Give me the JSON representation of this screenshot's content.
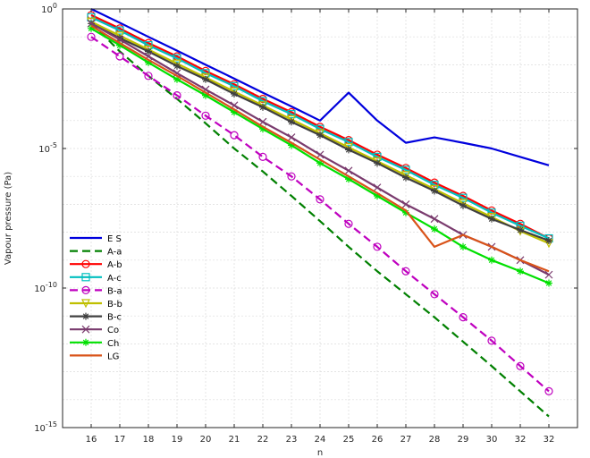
{
  "chart_data": {
    "type": "line",
    "xlabel": "n",
    "ylabel": "Vapour pressure (Pa)",
    "y_scale": "log",
    "ylim": [
      1e-15,
      1
    ],
    "categories": [
      "16",
      "17",
      "18",
      "19",
      "20",
      "21",
      "22",
      "23",
      "24",
      "25",
      "26",
      "27",
      "28",
      "29",
      "30",
      "32",
      "32"
    ],
    "y_ticks": [
      {
        "value": 1,
        "base": "10",
        "exp": "0"
      },
      {
        "value": 1e-05,
        "base": "10",
        "exp": "-5"
      },
      {
        "value": 1e-10,
        "base": "10",
        "exp": "-10"
      },
      {
        "value": 1e-15,
        "base": "10",
        "exp": "-15"
      }
    ],
    "grid": true,
    "legend_position": "lower-left",
    "series": [
      {
        "name": "E S",
        "color": "#0000dd",
        "dash": "solid",
        "marker": "none",
        "values": [
          1,
          0.32,
          0.1,
          0.032,
          0.01,
          0.0032,
          0.001,
          0.00032,
          0.0001,
          0.001,
          0.0001,
          1.6e-05,
          2.5e-05,
          1.6e-05,
          1e-05,
          5e-06,
          2.5e-06
        ]
      },
      {
        "name": "A-a",
        "color": "#008000",
        "dash": "dashed",
        "marker": "none",
        "values": [
          0.32,
          0.03,
          0.004,
          0.0006,
          8e-05,
          1e-05,
          1.5e-06,
          2e-07,
          2.5e-08,
          3e-09,
          4e-10,
          6e-11,
          9e-12,
          1.2e-12,
          1.6e-13,
          2e-14,
          2.5e-15
        ]
      },
      {
        "name": "A-b",
        "color": "#ff0000",
        "dash": "solid",
        "marker": "circle",
        "values": [
          0.6,
          0.2,
          0.06,
          0.02,
          0.006,
          0.002,
          0.0006,
          0.0002,
          6e-05,
          2e-05,
          6e-06,
          2e-06,
          6e-07,
          2e-07,
          6e-08,
          2e-08,
          6e-09
        ]
      },
      {
        "name": "A-c",
        "color": "#00bfbf",
        "dash": "solid",
        "marker": "square",
        "values": [
          0.5,
          0.17,
          0.05,
          0.017,
          0.005,
          0.0017,
          0.0005,
          0.00017,
          5e-05,
          1.7e-05,
          5e-06,
          1.7e-06,
          5e-07,
          1.7e-07,
          5e-08,
          1.7e-08,
          6e-09
        ]
      },
      {
        "name": "B-a",
        "color": "#bf00bf",
        "dash": "dashed",
        "marker": "circle",
        "values": [
          0.1,
          0.02,
          0.004,
          0.0008,
          0.00015,
          3e-05,
          5e-06,
          1e-06,
          1.5e-07,
          2e-08,
          3e-09,
          4e-10,
          6e-11,
          9e-12,
          1.3e-12,
          1.6e-13,
          2e-14
        ]
      },
      {
        "name": "B-b",
        "color": "#bfbf00",
        "dash": "solid",
        "marker": "triangle-down",
        "values": [
          0.35,
          0.11,
          0.035,
          0.011,
          0.0035,
          0.0011,
          0.00035,
          0.00011,
          3.5e-05,
          1.1e-05,
          3.5e-06,
          1.1e-06,
          3.5e-07,
          1.1e-07,
          3.5e-08,
          1.1e-08,
          4e-09
        ]
      },
      {
        "name": "B-c",
        "color": "#404040",
        "dash": "solid",
        "marker": "star",
        "values": [
          0.3,
          0.09,
          0.03,
          0.009,
          0.003,
          0.0009,
          0.0003,
          9e-05,
          3e-05,
          9e-06,
          3e-06,
          9e-07,
          3e-07,
          9e-08,
          3e-08,
          1.2e-08,
          5e-09
        ]
      },
      {
        "name": "Co",
        "color": "#7a3b6e",
        "dash": "solid",
        "marker": "x",
        "values": [
          0.3,
          0.08,
          0.02,
          0.005,
          0.0013,
          0.00035,
          9e-05,
          2.5e-05,
          6e-06,
          1.6e-06,
          4e-07,
          1e-07,
          3e-08,
          8e-09,
          3e-09,
          1e-09,
          3e-10
        ]
      },
      {
        "name": "Ch",
        "color": "#00e000",
        "dash": "solid",
        "marker": "asterisk",
        "values": [
          0.2,
          0.05,
          0.012,
          0.003,
          0.0008,
          0.0002,
          5e-05,
          1.3e-05,
          3e-06,
          8e-07,
          2e-07,
          5e-08,
          1.3e-08,
          3e-09,
          1e-09,
          4e-10,
          1.5e-10
        ]
      },
      {
        "name": "LG",
        "color": "#d95319",
        "dash": "solid",
        "marker": "none",
        "values": [
          0.25,
          0.06,
          0.015,
          0.004,
          0.001,
          0.00025,
          6e-05,
          1.6e-05,
          4e-06,
          1e-06,
          2.5e-07,
          6e-08,
          3e-09,
          8e-09,
          3e-09,
          1e-09,
          4e-10
        ]
      }
    ]
  }
}
